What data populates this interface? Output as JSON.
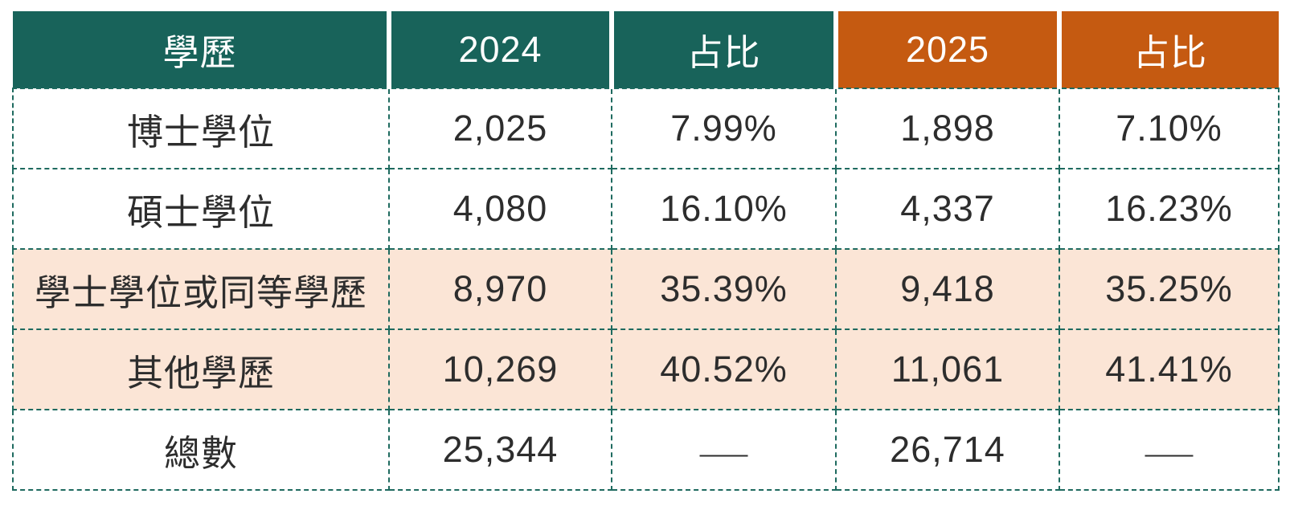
{
  "chart_data": {
    "type": "table",
    "title": "學歷分布統計表 (visible table only)",
    "columns": [
      "學歷",
      "2024",
      "占比",
      "2025",
      "占比"
    ],
    "rows": [
      [
        "博士學位",
        "2,025",
        "7.99%",
        "1,898",
        "7.10%"
      ],
      [
        "碩士學位",
        "4,080",
        "16.10%",
        "4,337",
        "16.23%"
      ],
      [
        "學士學位或同等學歷",
        "8,970",
        "35.39%",
        "9,418",
        "35.25%"
      ],
      [
        "其他學歷",
        "10,269",
        "40.52%",
        "11,061",
        "41.41%"
      ],
      [
        "總數",
        "25,344",
        "——",
        "26,714",
        "——"
      ]
    ],
    "highlighted_row_indexes": [
      2,
      3
    ],
    "layout": {
      "header_themes": [
        "teal",
        "teal",
        "teal",
        "orange",
        "orange"
      ],
      "grid": "dashed"
    }
  },
  "colors": {
    "header_teal": "#18635A",
    "header_orange": "#C55A11",
    "row_highlight": "#FBE5D6",
    "grid_border": "#1E6A5F",
    "body_text": "#2D2D2D",
    "header_text": "#FFFFFF"
  }
}
